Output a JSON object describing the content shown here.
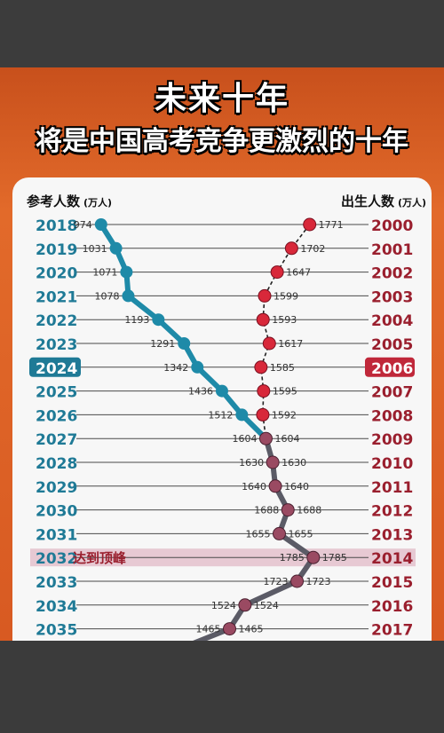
{
  "title_main": "未来十年",
  "title_sub": "将是中国高考竞争更激烈的十年",
  "chart_data": {
    "type": "line",
    "left_axis_label": "参考人数",
    "left_axis_unit": "(万人)",
    "right_axis_label": "出生人数",
    "right_axis_unit": "(万人)",
    "highlight_exam_year": 2024,
    "highlight_birth_year": 2006,
    "peak_exam_year": 2032,
    "peak_label": "达到顶峰",
    "rows": [
      {
        "exam_year": 2018,
        "birth_year": 2000,
        "examinees": 974,
        "examinees_label": "974",
        "births": 1771,
        "births_label": "1771"
      },
      {
        "exam_year": 2019,
        "birth_year": 2001,
        "examinees": 1031,
        "examinees_label": "1031",
        "births": 1702,
        "births_label": "1702"
      },
      {
        "exam_year": 2020,
        "birth_year": 2002,
        "examinees": 1071,
        "examinees_label": "1071",
        "births": 1647,
        "births_label": "1647"
      },
      {
        "exam_year": 2021,
        "birth_year": 2003,
        "examinees": 1078,
        "examinees_label": "1078",
        "births": 1599,
        "births_label": "1599"
      },
      {
        "exam_year": 2022,
        "birth_year": 2004,
        "examinees": 1193,
        "examinees_label": "1193",
        "births": 1593,
        "births_label": "1593"
      },
      {
        "exam_year": 2023,
        "birth_year": 2005,
        "examinees": 1291,
        "examinees_label": "1291",
        "births": 1617,
        "births_label": "1617"
      },
      {
        "exam_year": 2024,
        "birth_year": 2006,
        "examinees": 1342,
        "examinees_label": "1342",
        "births": 1585,
        "births_label": "1585"
      },
      {
        "exam_year": 2025,
        "birth_year": 2007,
        "examinees": 1436,
        "examinees_label": "1436",
        "births": 1595,
        "births_label": "1595"
      },
      {
        "exam_year": 2026,
        "birth_year": 2008,
        "examinees": 1512,
        "examinees_label": "1512",
        "births": 1592,
        "births_label": "1592"
      },
      {
        "exam_year": 2027,
        "birth_year": 2009,
        "examinees": 1604,
        "examinees_label": "1604",
        "births": 1604,
        "births_label": "1604"
      },
      {
        "exam_year": 2028,
        "birth_year": 2010,
        "examinees": 1630,
        "examinees_label": "1630",
        "births": 1630,
        "births_label": "1630"
      },
      {
        "exam_year": 2029,
        "birth_year": 2011,
        "examinees": 1640,
        "examinees_label": "1640",
        "births": 1640,
        "births_label": "1640"
      },
      {
        "exam_year": 2030,
        "birth_year": 2012,
        "examinees": 1688,
        "examinees_label": "1688",
        "births": 1688,
        "births_label": "1688"
      },
      {
        "exam_year": 2031,
        "birth_year": 2013,
        "examinees": 1655,
        "examinees_label": "1655",
        "births": 1655,
        "births_label": "1655"
      },
      {
        "exam_year": 2032,
        "birth_year": 2014,
        "examinees": 1785,
        "examinees_label": "1785",
        "births": 1785,
        "births_label": "1785"
      },
      {
        "exam_year": 2033,
        "birth_year": 2015,
        "examinees": 1723,
        "examinees_label": "1723",
        "births": 1723,
        "births_label": "1723"
      },
      {
        "exam_year": 2034,
        "birth_year": 2016,
        "examinees": 1524,
        "examinees_label": "1524",
        "births": 1524,
        "births_label": "1524"
      },
      {
        "exam_year": 2035,
        "birth_year": 2017,
        "examinees": 1465,
        "examinees_label": "1465",
        "births": 1465,
        "births_label": "1465"
      }
    ],
    "colors": {
      "examinee_line": "#1e8aa8",
      "future_line": "#5b5b66",
      "birth_points": "#d8283a",
      "merged_points": "#9a4a62",
      "exam_year_text": "#1f7a96",
      "birth_year_text": "#9a1f2e",
      "peak_band": "#e7c9d3"
    }
  }
}
